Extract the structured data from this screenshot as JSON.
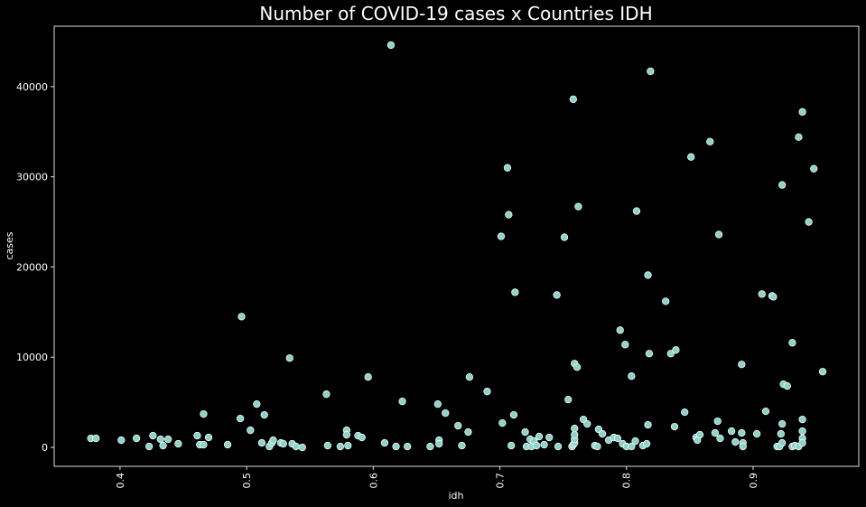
{
  "chart_data": {
    "type": "scatter",
    "title": "Number of COVID-19 cases x Countries IDH",
    "xlabel": "idh",
    "ylabel": "cases",
    "color": "#8dd3c7",
    "edgecolor": "#ffffff",
    "xlim": [
      0.348,
      0.9835
    ],
    "ylim": [
      -2100,
      46700
    ],
    "xticks": [
      0.4,
      0.5,
      0.6,
      0.7,
      0.8,
      0.9
    ],
    "yticks": [
      0,
      10000,
      20000,
      30000,
      40000
    ],
    "x": [
      0.377,
      0.381,
      0.401,
      0.413,
      0.423,
      0.426,
      0.432,
      0.434,
      0.438,
      0.446,
      0.461,
      0.463,
      0.466,
      0.466,
      0.47,
      0.485,
      0.495,
      0.496,
      0.503,
      0.508,
      0.512,
      0.514,
      0.518,
      0.52,
      0.521,
      0.527,
      0.529,
      0.534,
      0.536,
      0.539,
      0.544,
      0.563,
      0.564,
      0.574,
      0.579,
      0.579,
      0.58,
      0.588,
      0.591,
      0.596,
      0.609,
      0.614,
      0.618,
      0.623,
      0.627,
      0.645,
      0.651,
      0.652,
      0.652,
      0.657,
      0.667,
      0.67,
      0.675,
      0.676,
      0.69,
      0.701,
      0.702,
      0.706,
      0.707,
      0.709,
      0.711,
      0.712,
      0.72,
      0.721,
      0.724,
      0.725,
      0.727,
      0.729,
      0.731,
      0.735,
      0.739,
      0.745,
      0.746,
      0.751,
      0.754,
      0.757,
      0.758,
      0.758,
      0.759,
      0.759,
      0.759,
      0.759,
      0.759,
      0.761,
      0.762,
      0.766,
      0.769,
      0.775,
      0.777,
      0.778,
      0.781,
      0.786,
      0.79,
      0.793,
      0.795,
      0.797,
      0.799,
      0.8,
      0.804,
      0.804,
      0.807,
      0.808,
      0.813,
      0.816,
      0.817,
      0.817,
      0.818,
      0.819,
      0.831,
      0.835,
      0.839,
      0.838,
      0.846,
      0.851,
      0.855,
      0.856,
      0.858,
      0.866,
      0.87,
      0.872,
      0.873,
      0.874,
      0.883,
      0.886,
      0.891,
      0.891,
      0.892,
      0.892,
      0.903,
      0.907,
      0.91,
      0.915,
      0.916,
      0.919,
      0.921,
      0.922,
      0.923,
      0.923,
      0.923,
      0.924,
      0.927,
      0.931,
      0.931,
      0.933,
      0.936,
      0.936,
      0.939,
      0.939,
      0.939,
      0.939,
      0.939,
      0.944,
      0.948,
      0.955
    ],
    "values": [
      1000,
      1000,
      800,
      1000,
      100,
      1300,
      900,
      200,
      900,
      400,
      1300,
      300,
      300,
      3700,
      1100,
      300,
      3200,
      14500,
      1900,
      4800,
      500,
      3600,
      100,
      500,
      800,
      500,
      400,
      9900,
      400,
      100,
      0,
      5900,
      200,
      100,
      1900,
      1400,
      200,
      1300,
      1100,
      7800,
      500,
      44600,
      100,
      5100,
      100,
      100,
      4800,
      800,
      400,
      3800,
      2400,
      200,
      1700,
      7800,
      6200,
      23400,
      2700,
      31000,
      25800,
      200,
      3600,
      17200,
      1700,
      100,
      900,
      100,
      700,
      200,
      1200,
      300,
      1100,
      16900,
      100,
      23300,
      5300,
      100,
      38600,
      300,
      500,
      900,
      1400,
      2100,
      9300,
      8900,
      26700,
      3100,
      2600,
      200,
      100,
      2000,
      1500,
      800,
      1100,
      1000,
      13000,
      400,
      11400,
      100,
      7900,
      100,
      700,
      26200,
      200,
      400,
      2500,
      19100,
      10400,
      41700,
      16200,
      10400,
      10800,
      2300,
      3900,
      32200,
      1100,
      800,
      1400,
      33900,
      1600,
      2900,
      23600,
      1000,
      1800,
      600,
      1600,
      9200,
      500,
      100,
      1500,
      17000,
      4000,
      16800,
      16700,
      100,
      100,
      1500,
      500,
      29100,
      2600,
      7000,
      6800,
      100,
      11600,
      200,
      34400,
      100,
      37200,
      3100,
      1800,
      1000,
      500,
      25000,
      30900,
      8400
    ]
  }
}
